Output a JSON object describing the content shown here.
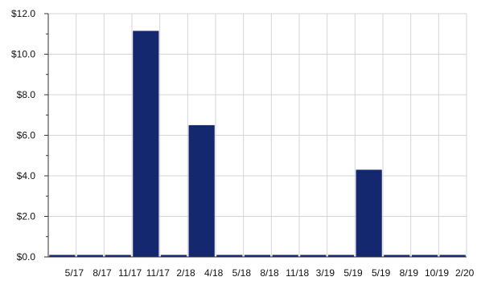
{
  "chart_data": {
    "type": "bar",
    "title": "",
    "xlabel": "",
    "ylabel": "",
    "categories": [
      "5/17",
      "8/17",
      "11/17",
      "11/17",
      "2/18",
      "4/18",
      "5/18",
      "8/18",
      "11/18",
      "3/19",
      "5/19",
      "5/19",
      "8/19",
      "10/19",
      "2/20"
    ],
    "values": [
      0.0,
      0.0,
      0.0,
      11.15,
      0.0,
      6.5,
      0.0,
      0.0,
      0.0,
      0.0,
      0.0,
      4.3,
      0.0,
      0.0,
      0.0
    ],
    "ylim": [
      0,
      12
    ],
    "y_ticks": [
      {
        "value": 0,
        "label": "$0.0"
      },
      {
        "value": 2,
        "label": "$2.0"
      },
      {
        "value": 4,
        "label": "$4.0"
      },
      {
        "value": 6,
        "label": "$6.0"
      },
      {
        "value": 8,
        "label": "$8.0"
      },
      {
        "value": 10,
        "label": "$10.0"
      },
      {
        "value": 12,
        "label": "$12.0"
      }
    ],
    "y_minor_step": 1,
    "grid": true,
    "legend": "none",
    "colors": {
      "bar": "#14286f",
      "grid": "#d5d5d5",
      "axis": "#333333",
      "text": "#111111"
    }
  }
}
